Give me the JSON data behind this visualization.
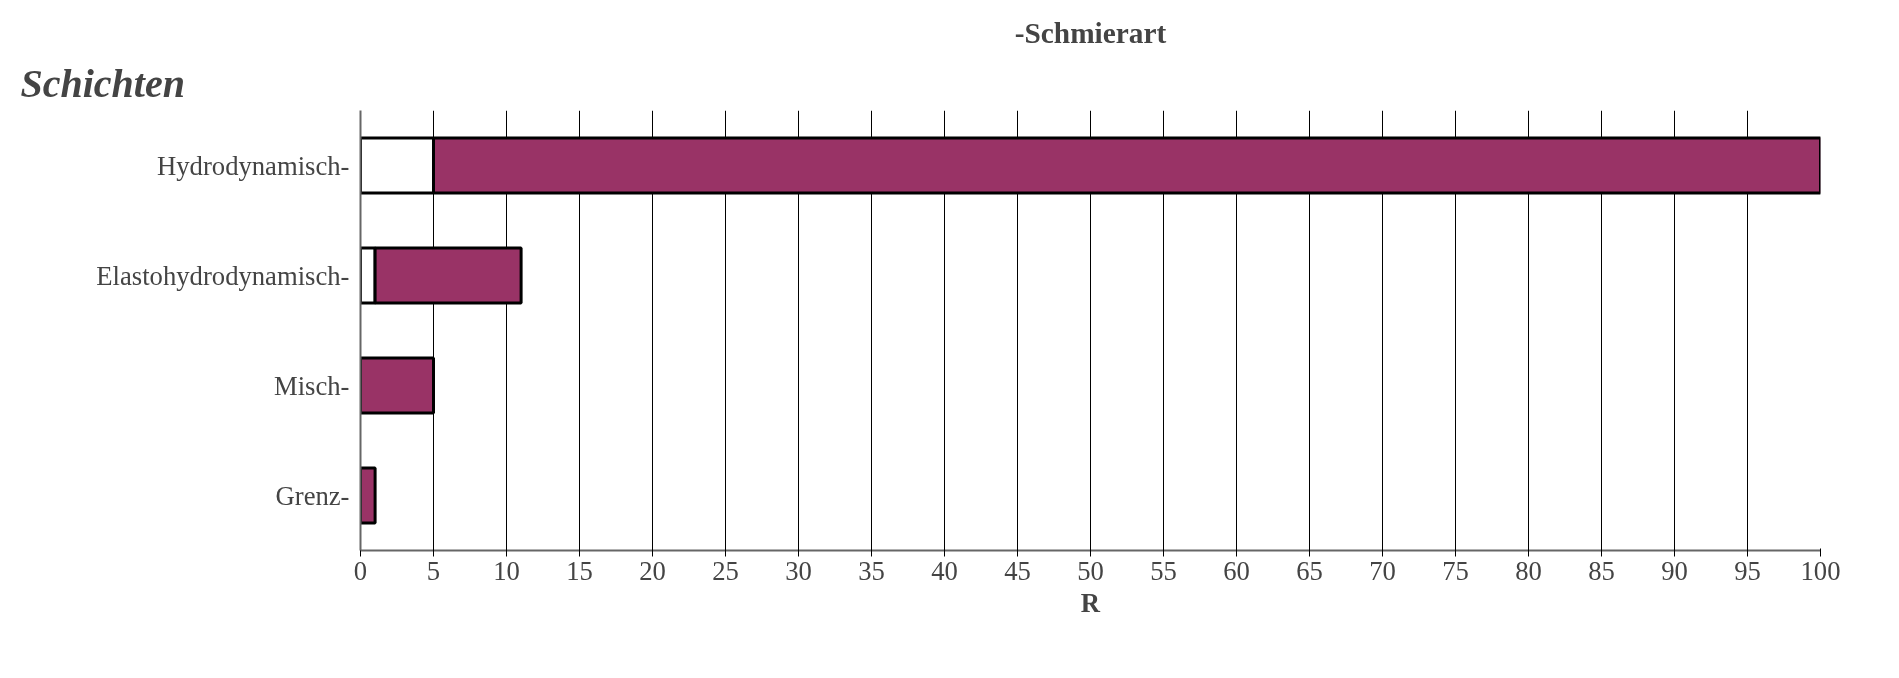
{
  "chart_data": {
    "type": "bar",
    "orientation": "horizontal",
    "stacked": true,
    "title": "-Schmierart",
    "xlabel": "R",
    "annotations": [
      "Schichten"
    ],
    "categories": [
      "Hydrodynamisch-",
      "Elastohydrodynamisch-",
      "Misch-",
      "Grenz-"
    ],
    "series": [
      {
        "color": "#ffffff",
        "values": [
          5,
          1,
          null,
          null
        ]
      },
      {
        "color": "#993366",
        "values": [
          95,
          10,
          5,
          1
        ]
      }
    ],
    "xlim": [
      0,
      100
    ],
    "xticks": [
      0,
      5,
      10,
      15,
      20,
      25,
      30,
      35,
      40,
      45,
      50,
      55,
      60,
      65,
      70,
      75,
      80,
      85,
      90,
      95,
      100
    ],
    "grid": "x"
  }
}
